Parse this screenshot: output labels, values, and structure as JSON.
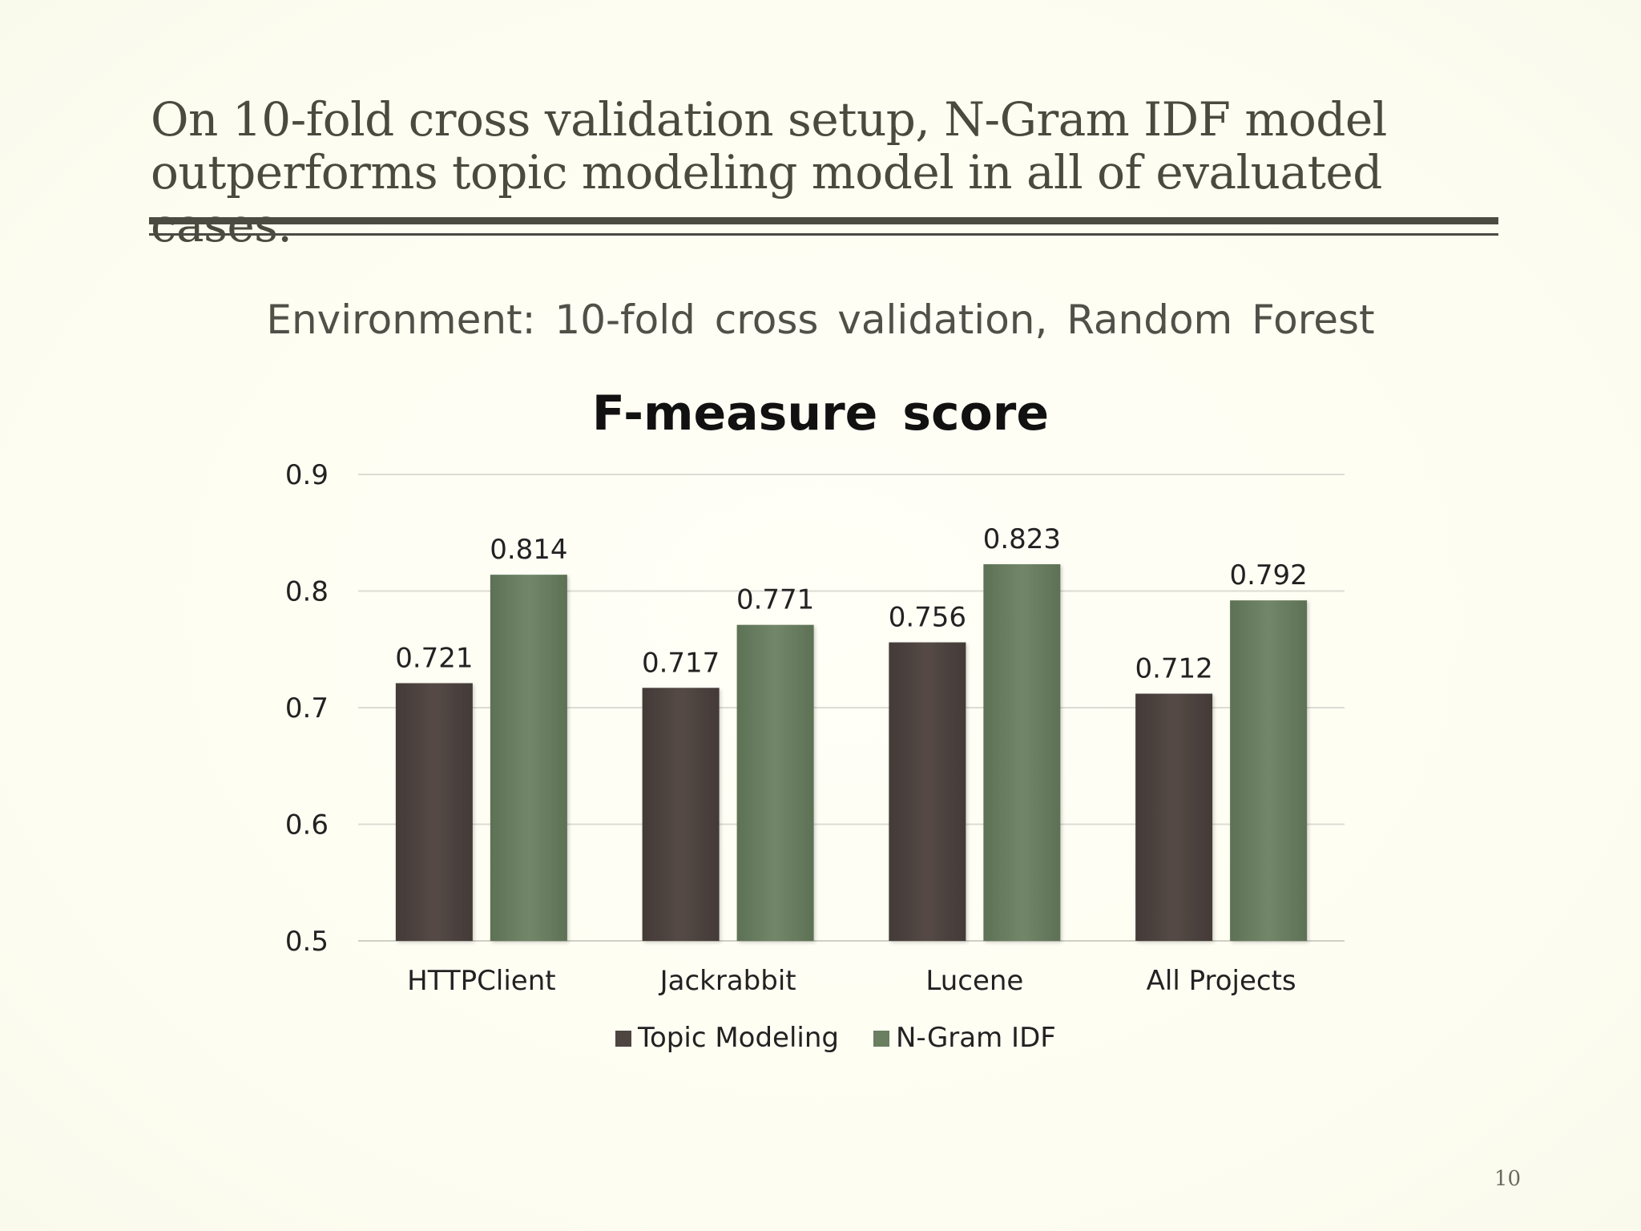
{
  "slide": {
    "title": "On 10-fold cross validation setup, N-Gram IDF model\noutperforms topic modeling model in all of evaluated cases.",
    "subtitle": "Environment: 10-fold cross validation, Random Forest",
    "page_number": "10"
  },
  "colors": {
    "background": "#fefef4",
    "title_text": "#4a4a3e",
    "rule": "#4b4b42",
    "topic_modeling": "#4e4440",
    "ngram_idf": "#6a7e60",
    "gridline": "#dcdcd4"
  },
  "chart_data": {
    "type": "bar",
    "title": "F-measure score",
    "xlabel": "",
    "ylabel": "",
    "ylim": [
      0.5,
      0.9
    ],
    "yticks": [
      "0.5",
      "0.6",
      "0.7",
      "0.8",
      "0.9"
    ],
    "grid": true,
    "legend_position": "bottom",
    "categories": [
      "HTTPClient",
      "Jackrabbit",
      "Lucene",
      "All Projects"
    ],
    "series": [
      {
        "name": "Topic Modeling",
        "values": [
          0.721,
          0.717,
          0.756,
          0.712
        ],
        "labels": [
          "0.721",
          "0.717",
          "0.756",
          "0.712"
        ],
        "color": "#4e4440"
      },
      {
        "name": "N-Gram IDF",
        "values": [
          0.814,
          0.771,
          0.823,
          0.792
        ],
        "labels": [
          "0.814",
          "0.771",
          "0.823",
          "0.792"
        ],
        "color": "#6a7e60"
      }
    ]
  }
}
